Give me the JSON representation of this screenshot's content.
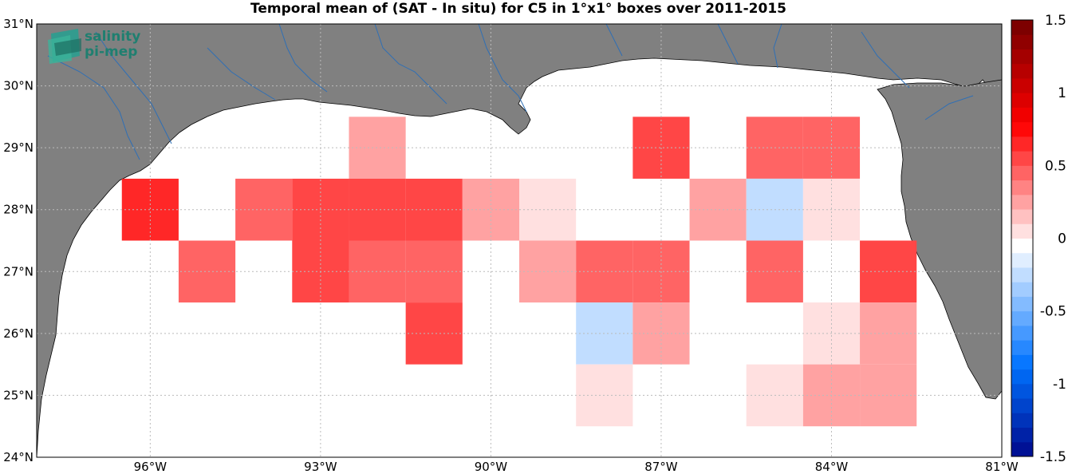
{
  "title": "Temporal mean of (SAT - In situ) for C5 in 1°x1° boxes over 2011-2015",
  "logo": {
    "line1": "salinity",
    "line2": "pi-mep"
  },
  "colors": {
    "land": "#808080",
    "river": "#2f6fb5",
    "grid": "#bbbbbb",
    "ocean": "#ffffff"
  },
  "map_data": {
    "lon_range": [
      -98,
      -81
    ],
    "lat_range": [
      24,
      31
    ],
    "lon_ticks": [
      {
        "value": -96,
        "label": "96°W"
      },
      {
        "value": -93,
        "label": "93°W"
      },
      {
        "value": -90,
        "label": "90°W"
      },
      {
        "value": -87,
        "label": "87°W"
      },
      {
        "value": -84,
        "label": "84°W"
      },
      {
        "value": -81,
        "label": "81°W"
      }
    ],
    "lat_ticks": [
      {
        "value": 24,
        "label": "24°N"
      },
      {
        "value": 25,
        "label": "25°N"
      },
      {
        "value": 26,
        "label": "26°N"
      },
      {
        "value": 27,
        "label": "27°N"
      },
      {
        "value": 28,
        "label": "28°N"
      },
      {
        "value": 29,
        "label": "29°N"
      },
      {
        "value": 30,
        "label": "30°N"
      },
      {
        "value": 31,
        "label": "31°N"
      }
    ],
    "grid": true,
    "boxes": [
      {
        "lon": -92,
        "lat": 29,
        "value": 0.25
      },
      {
        "lon": -87,
        "lat": 29,
        "value": 0.55
      },
      {
        "lon": -85,
        "lat": 29,
        "value": 0.45
      },
      {
        "lon": -84,
        "lat": 29,
        "value": 0.45
      },
      {
        "lon": -96,
        "lat": 28,
        "value": 0.65
      },
      {
        "lon": -94,
        "lat": 28,
        "value": 0.45
      },
      {
        "lon": -93,
        "lat": 28,
        "value": 0.55
      },
      {
        "lon": -92,
        "lat": 28,
        "value": 0.55
      },
      {
        "lon": -91,
        "lat": 28,
        "value": 0.55
      },
      {
        "lon": -90,
        "lat": 28,
        "value": 0.35
      },
      {
        "lon": -89,
        "lat": 28,
        "value": 0.15
      },
      {
        "lon": -86,
        "lat": 28,
        "value": 0.35
      },
      {
        "lon": -85,
        "lat": 28,
        "value": -0.25
      },
      {
        "lon": -84,
        "lat": 28,
        "value": 0.15
      },
      {
        "lon": -95,
        "lat": 27,
        "value": 0.45
      },
      {
        "lon": -93,
        "lat": 27,
        "value": 0.55
      },
      {
        "lon": -92,
        "lat": 27,
        "value": 0.45
      },
      {
        "lon": -91,
        "lat": 27,
        "value": 0.45
      },
      {
        "lon": -89,
        "lat": 27,
        "value": 0.35
      },
      {
        "lon": -88,
        "lat": 27,
        "value": 0.45
      },
      {
        "lon": -87,
        "lat": 27,
        "value": 0.45
      },
      {
        "lon": -85,
        "lat": 27,
        "value": 0.45
      },
      {
        "lon": -83,
        "lat": 27,
        "value": 0.55
      },
      {
        "lon": -91,
        "lat": 26,
        "value": 0.55
      },
      {
        "lon": -88,
        "lat": 26,
        "value": -0.25
      },
      {
        "lon": -87,
        "lat": 26,
        "value": 0.35
      },
      {
        "lon": -84,
        "lat": 26,
        "value": 0.15
      },
      {
        "lon": -83,
        "lat": 26,
        "value": 0.35
      },
      {
        "lon": -88,
        "lat": 25,
        "value": 0.15
      },
      {
        "lon": -85,
        "lat": 25,
        "value": 0.15
      },
      {
        "lon": -84,
        "lat": 25,
        "value": 0.25
      },
      {
        "lon": -83,
        "lat": 25,
        "value": 0.25
      }
    ]
  },
  "colorbar": {
    "range": [
      -1.5,
      1.5
    ],
    "step": 0.1,
    "ticks": [
      {
        "value": 1.5,
        "label": "1.5"
      },
      {
        "value": 1,
        "label": "1"
      },
      {
        "value": 0.5,
        "label": "0.5"
      },
      {
        "value": 0,
        "label": "0"
      },
      {
        "value": -0.5,
        "label": "-0.5"
      },
      {
        "value": -1,
        "label": "-1"
      },
      {
        "value": -1.5,
        "label": "-1.5"
      }
    ]
  }
}
